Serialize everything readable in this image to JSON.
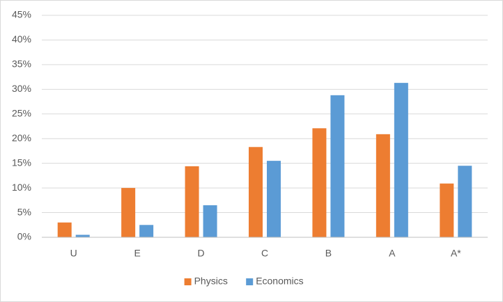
{
  "chart_data": {
    "type": "bar",
    "categories": [
      "U",
      "E",
      "D",
      "C",
      "B",
      "A",
      "A*"
    ],
    "series": [
      {
        "name": "Physics",
        "color": "#ed7d31",
        "values": [
          3,
          10,
          14.4,
          18.3,
          22.1,
          20.9,
          10.9
        ]
      },
      {
        "name": "Economics",
        "color": "#5b9bd5",
        "values": [
          0.5,
          2.5,
          6.5,
          15.5,
          28.8,
          31.3,
          14.5
        ]
      }
    ],
    "ylim": [
      0,
      45
    ],
    "yticks": [
      {
        "value": 0,
        "label": "0%"
      },
      {
        "value": 5,
        "label": "5%"
      },
      {
        "value": 10,
        "label": "10%"
      },
      {
        "value": 15,
        "label": "15%"
      },
      {
        "value": 20,
        "label": "20%"
      },
      {
        "value": 25,
        "label": "25%"
      },
      {
        "value": 30,
        "label": "30%"
      },
      {
        "value": 35,
        "label": "35%"
      },
      {
        "value": 40,
        "label": "40%"
      },
      {
        "value": 45,
        "label": "45%"
      }
    ],
    "grid": true,
    "legend": "bottom"
  }
}
